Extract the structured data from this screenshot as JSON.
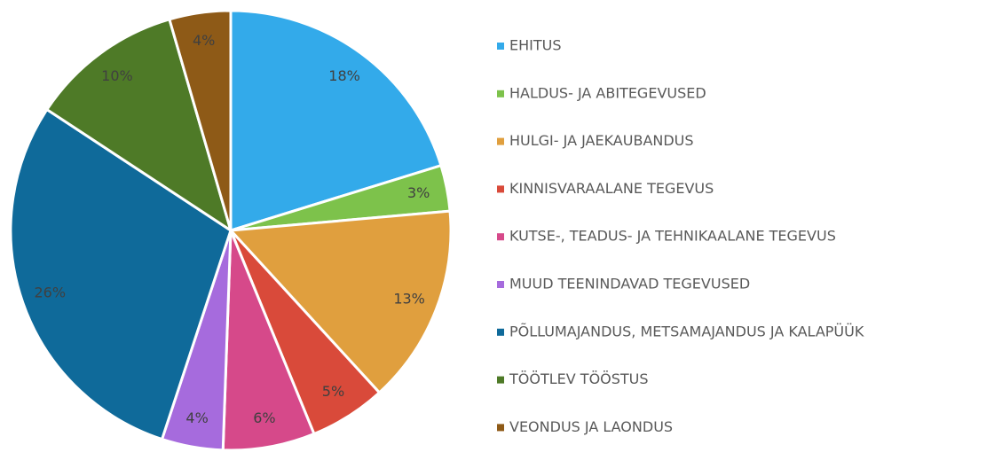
{
  "chart_data": {
    "type": "pie",
    "categories": [
      "EHITUS",
      "HALDUS- JA ABITEGEVUSED",
      "HULGI- JA JAEKAUBANDUS",
      "KINNISVARAALANE TEGEVUS",
      "KUTSE-, TEADUS- JA TEHNIKAALANE TEGEVUS",
      "MUUD TEENINDAVAD TEGEVUSED",
      "PÕLLUMAJANDUS, METSAMAJANDUS JA KALAPÜÜK",
      "TÖÖTLEV TÖÖSTUS",
      "VEONDUS JA LAONDUS"
    ],
    "values": [
      18,
      3,
      13,
      5,
      6,
      4,
      26,
      10,
      4
    ],
    "value_labels": [
      "18%",
      "3%",
      "13%",
      "5%",
      "6%",
      "4%",
      "26%",
      "10%",
      "4%"
    ],
    "colors": [
      "#33aaea",
      "#7dc24b",
      "#e09f3e",
      "#d94a3a",
      "#d6498a",
      "#a66bdd",
      "#0f6a9a",
      "#4e7a27",
      "#8e5a17"
    ],
    "legend": "right"
  }
}
